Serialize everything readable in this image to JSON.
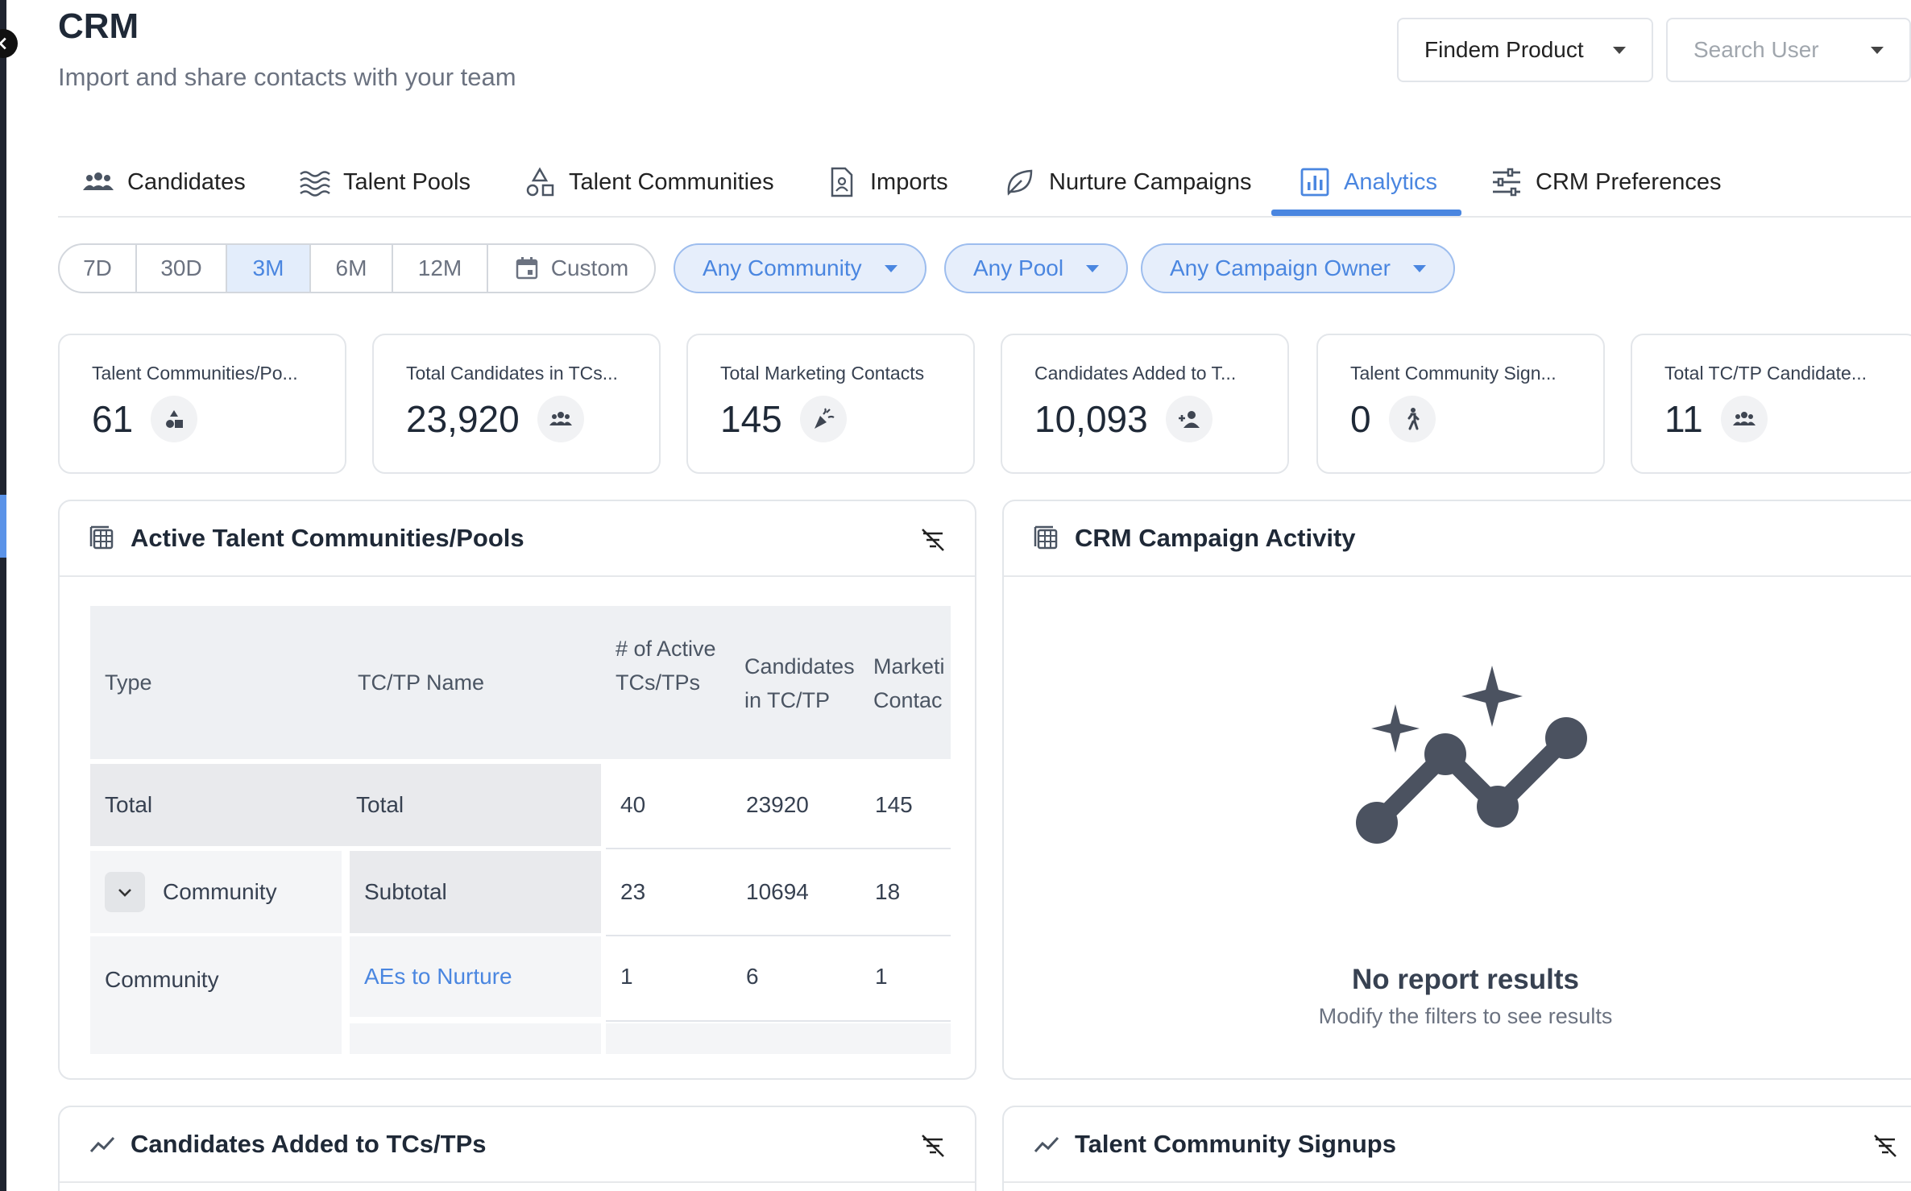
{
  "header": {
    "title": "CRM",
    "subtitle": "Import and share contacts with your team",
    "product_select": "Findem Product",
    "user_search_placeholder": "Search User"
  },
  "tabs": [
    {
      "label": "Candidates",
      "icon": "people-icon"
    },
    {
      "label": "Talent Pools",
      "icon": "waves-icon"
    },
    {
      "label": "Talent Communities",
      "icon": "shapes-icon"
    },
    {
      "label": "Imports",
      "icon": "document-icon"
    },
    {
      "label": "Nurture Campaigns",
      "icon": "leaf-icon"
    },
    {
      "label": "Analytics",
      "icon": "bar-chart-icon",
      "active": true
    },
    {
      "label": "CRM Preferences",
      "icon": "sliders-icon"
    }
  ],
  "date_ranges": [
    {
      "label": "7D"
    },
    {
      "label": "30D"
    },
    {
      "label": "3M",
      "active": true
    },
    {
      "label": "6M"
    },
    {
      "label": "12M"
    },
    {
      "label": "Custom",
      "icon": "calendar-icon"
    }
  ],
  "filters": {
    "community": "Any Community",
    "pool": "Any Pool",
    "campaign_owner": "Any Campaign Owner"
  },
  "kpis": [
    {
      "label": "Talent Communities/Po...",
      "value": "61",
      "icon": "shapes-icon"
    },
    {
      "label": "Total Candidates in TCs...",
      "value": "23,920",
      "icon": "group-icon"
    },
    {
      "label": "Total Marketing Contacts",
      "value": "145",
      "icon": "party-popper-icon"
    },
    {
      "label": "Candidates Added to T...",
      "value": "10,093",
      "icon": "person-add-icon"
    },
    {
      "label": "Talent Community Sign...",
      "value": "0",
      "icon": "person-walk-icon"
    },
    {
      "label": "Total TC/TP Candidate...",
      "value": "11",
      "icon": "group-icon"
    }
  ],
  "active_table": {
    "title": "Active Talent Communities/Pools",
    "columns": [
      "Type",
      "TC/TP Name",
      "# of Active TCs/TPs",
      "Candidates in TC/TP",
      "Marketi Contac"
    ],
    "total_row": {
      "type": "Total",
      "name": "Total",
      "active": "40",
      "candidates": "23920",
      "marketing": "145"
    },
    "group_row": {
      "type": "Community",
      "name": "Subtotal",
      "active": "23",
      "candidates": "10694",
      "marketing": "18"
    },
    "detail_row": {
      "type": "Community",
      "name": "AEs to Nurture",
      "active": "1",
      "candidates": "6",
      "marketing": "1"
    }
  },
  "campaign_activity": {
    "title": "CRM Campaign Activity",
    "empty_title": "No report results",
    "empty_subtitle": "Modify the filters to see results"
  },
  "bottom_cards": {
    "candidates_added": "Candidates Added to TCs/TPs",
    "signups": "Talent Community Signups"
  },
  "colors": {
    "accent": "#4a86e0",
    "accent_bg": "#e6eefb",
    "border": "#e3e6ea"
  }
}
